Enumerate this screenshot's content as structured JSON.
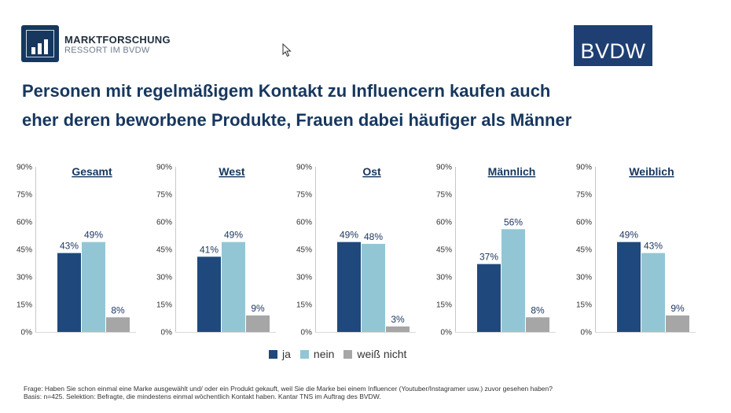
{
  "header": {
    "brand_line1": "MARKTFORSCHUNG",
    "brand_line2": "RESSORT IM BVDW",
    "bvdw_logo": "BVDW"
  },
  "title": {
    "line1": "Personen mit regelmäßigem Kontakt zu Influencern kaufen auch",
    "line2": "eher deren beworbene Produkte, Frauen dabei häufiger als Männer"
  },
  "colors": {
    "ja": "#1f497d",
    "nein": "#93c6d4",
    "weiss_nicht": "#a6a6a6",
    "title": "#17375e"
  },
  "legend": {
    "ja": "ja",
    "nein": "nein",
    "weiss_nicht": "weiß nicht"
  },
  "chart_data": [
    {
      "type": "bar",
      "title": "Gesamt",
      "categories": [
        "ja",
        "nein",
        "weiß nicht"
      ],
      "values": [
        43,
        49,
        8
      ],
      "labels": [
        "43%",
        "49%",
        "8%"
      ],
      "yticks": [
        "90%",
        "75%",
        "60%",
        "45%",
        "30%",
        "15%",
        "0%"
      ],
      "ylim": [
        0,
        90
      ]
    },
    {
      "type": "bar",
      "title": "West",
      "categories": [
        "ja",
        "nein",
        "weiß nicht"
      ],
      "values": [
        41,
        49,
        9
      ],
      "labels": [
        "41%",
        "49%",
        "9%"
      ],
      "yticks": [
        "90%",
        "75%",
        "60%",
        "45%",
        "30%",
        "15%",
        "0%"
      ],
      "ylim": [
        0,
        90
      ]
    },
    {
      "type": "bar",
      "title": "Ost",
      "categories": [
        "ja",
        "nein",
        "weiß nicht"
      ],
      "values": [
        49,
        48,
        3
      ],
      "labels": [
        "49%",
        "48%",
        "3%"
      ],
      "yticks": [
        "90%",
        "75%",
        "60%",
        "45%",
        "30%",
        "15%",
        "0%"
      ],
      "ylim": [
        0,
        90
      ]
    },
    {
      "type": "bar",
      "title": "Männlich",
      "categories": [
        "ja",
        "nein",
        "weiß nicht"
      ],
      "values": [
        37,
        56,
        8
      ],
      "labels": [
        "37%",
        "56%",
        "8%"
      ],
      "yticks": [
        "90%",
        "75%",
        "60%",
        "45%",
        "30%",
        "15%",
        "0%"
      ],
      "ylim": [
        0,
        90
      ]
    },
    {
      "type": "bar",
      "title": "Weiblich",
      "categories": [
        "ja",
        "nein",
        "weiß nicht"
      ],
      "values": [
        49,
        43,
        9
      ],
      "labels": [
        "49%",
        "43%",
        "9%"
      ],
      "yticks": [
        "90%",
        "75%",
        "60%",
        "45%",
        "30%",
        "15%",
        "0%"
      ],
      "ylim": [
        0,
        90
      ]
    }
  ],
  "footnote": {
    "line1": "Frage: Haben Sie schon einmal eine Marke ausgewählt und/ oder ein Produkt gekauft, weil Sie die Marke bei einem Influencer (Youtuber/Instagramer usw.) zuvor gesehen haben?",
    "line2": "Basis: n=425. Selektion: Befragte, die mindestens einmal wöchentlich Kontakt haben. Kantar TNS im Auftrag des BVDW."
  }
}
